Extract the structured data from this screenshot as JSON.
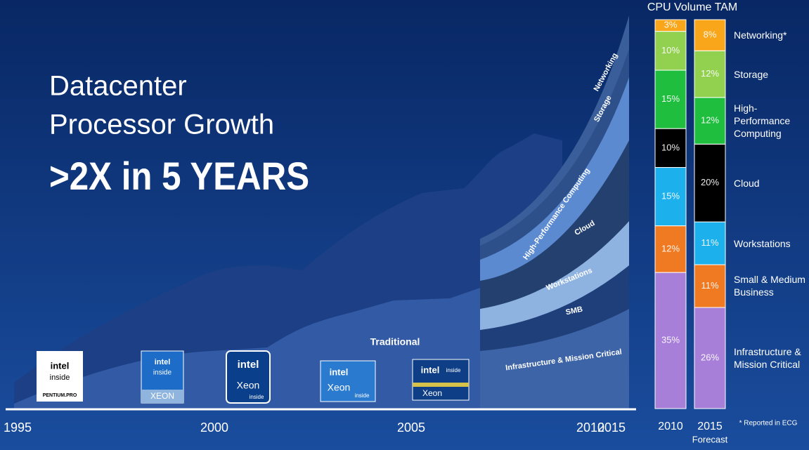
{
  "slide": {
    "title_lines": [
      "Datacenter",
      "Processor Growth"
    ],
    "headline": ">2X in 5 YEARS",
    "footnote": "* Reported in ECG"
  },
  "growth_chart": {
    "x_labels": [
      "1995",
      "2000",
      "2005",
      "2010",
      "2015"
    ],
    "traditional_label": "Traditional",
    "segments": [
      "Infrastructure & Mission Critical",
      "SMB",
      "Workstations",
      "Cloud",
      "High-Performance Computing",
      "Storage",
      "Networking"
    ],
    "logos": [
      [
        "intel",
        "inside",
        "PENTIUM.PRO"
      ],
      [
        "intel",
        "inside",
        "XEON"
      ],
      [
        "intel",
        "Xeon",
        "inside"
      ],
      [
        "intel",
        "Xeon",
        "inside"
      ],
      [
        "intel",
        "inside",
        "Xeon"
      ]
    ]
  },
  "chart_data": {
    "type": "stacked_bar",
    "title": "CPU Volume TAM",
    "categories": [
      "2010",
      "2015"
    ],
    "category_note": "Forecast",
    "ylim": [
      0,
      100
    ],
    "series": [
      {
        "name": "Infrastructure & Mission Critical",
        "color": "#a77fd8",
        "values": [
          35,
          26
        ],
        "value_labels": [
          "35%",
          "26%"
        ]
      },
      {
        "name": "Small & Medium Business",
        "color": "#f07a22",
        "values": [
          12,
          11
        ],
        "value_labels": [
          "12%",
          "11%"
        ]
      },
      {
        "name": "Workstations",
        "color": "#1cb0ec",
        "values": [
          15,
          11
        ],
        "value_labels": [
          "15%",
          "11%"
        ]
      },
      {
        "name": "Cloud",
        "color": "#000000",
        "values": [
          10,
          20
        ],
        "value_labels": [
          "10%",
          "20%"
        ]
      },
      {
        "name": "High-Performance Computing",
        "color": "#1fbe3e",
        "values": [
          15,
          12
        ],
        "value_labels": [
          "15%",
          "12%"
        ]
      },
      {
        "name": "Storage",
        "color": "#92d050",
        "values": [
          10,
          12
        ],
        "value_labels": [
          "10%",
          "12%"
        ]
      },
      {
        "name": "Networking*",
        "color": "#f9a61a",
        "values": [
          3,
          8
        ],
        "value_labels": [
          "3%",
          "8%"
        ]
      }
    ]
  }
}
